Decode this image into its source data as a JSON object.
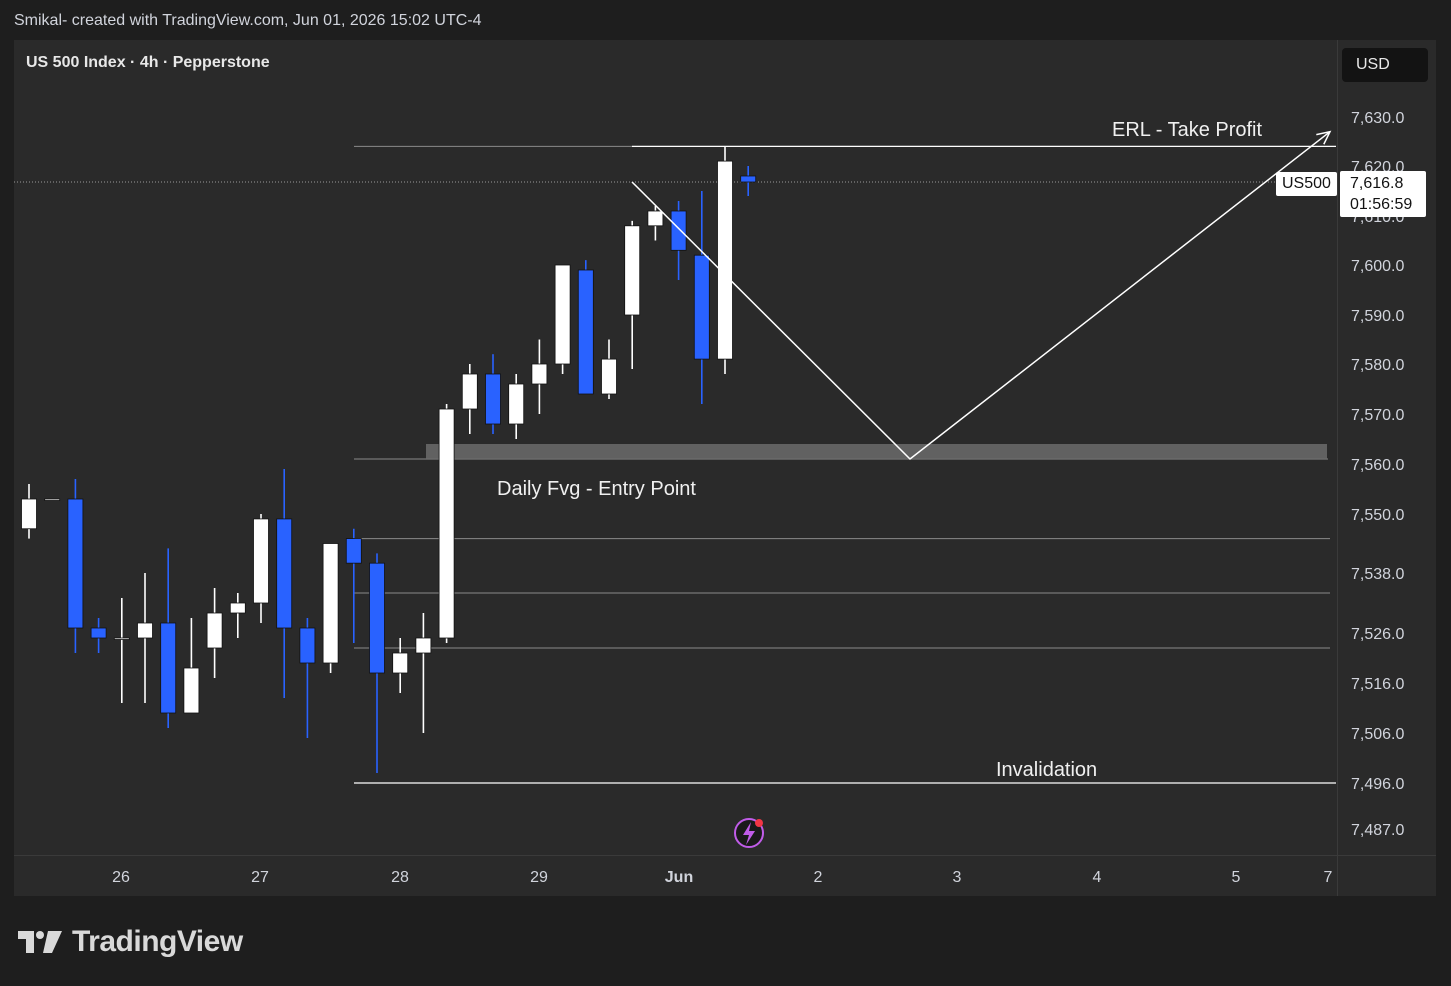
{
  "header": {
    "title": "Smikal- created with TradingView.com, Jun 01, 2026 15:02 UTC-4"
  },
  "legend": {
    "symbol": "US 500 Index · 4h · Pepperstone"
  },
  "currency_button": {
    "label": "USD"
  },
  "price_tag": {
    "symbol": "US500",
    "price": "7,616.8",
    "countdown": "01:56:59"
  },
  "branding": {
    "name": "TradingView"
  },
  "colors": {
    "bull": "#ffffff",
    "bear": "#2962ff",
    "background": "#2a2a2a",
    "fvg_zone": "#6b6b6b"
  },
  "chart_data": {
    "type": "candlestick",
    "title": "US 500 Index · 4h · Pepperstone",
    "y_ticks": [
      "7,630.0",
      "7,620.0",
      "7,610.0",
      "7,600.0",
      "7,590.0",
      "7,580.0",
      "7,570.0",
      "7,560.0",
      "7,550.0",
      "7,538.0",
      "7,526.0",
      "7,516.0",
      "7,506.0",
      "7,496.0",
      "7,487.0"
    ],
    "x_ticks": [
      "26",
      "27",
      "28",
      "29",
      "Jun",
      "2",
      "3",
      "4",
      "5",
      "7"
    ],
    "current_price": 7616.8,
    "candles": [
      {
        "o": 7547,
        "h": 7556,
        "l": 7545,
        "c": 7553
      },
      {
        "o": 7553,
        "h": 7553,
        "l": 7553,
        "c": 7553
      },
      {
        "o": 7553,
        "h": 7557,
        "l": 7522,
        "c": 7527
      },
      {
        "o": 7527,
        "h": 7529,
        "l": 7522,
        "c": 7525
      },
      {
        "o": 7525,
        "h": 7533,
        "l": 7512,
        "c": 7525
      },
      {
        "o": 7525,
        "h": 7538,
        "l": 7512,
        "c": 7528
      },
      {
        "o": 7528,
        "h": 7543,
        "l": 7507,
        "c": 7510
      },
      {
        "o": 7510,
        "h": 7529,
        "l": 7510,
        "c": 7519
      },
      {
        "o": 7523,
        "h": 7535,
        "l": 7517,
        "c": 7530
      },
      {
        "o": 7530,
        "h": 7534,
        "l": 7525,
        "c": 7532
      },
      {
        "o": 7532,
        "h": 7550,
        "l": 7528,
        "c": 7549
      },
      {
        "o": 7549,
        "h": 7559,
        "l": 7513,
        "c": 7527
      },
      {
        "o": 7527,
        "h": 7529,
        "l": 7505,
        "c": 7520
      },
      {
        "o": 7520,
        "h": 7544,
        "l": 7518,
        "c": 7544
      },
      {
        "o": 7545,
        "h": 7547,
        "l": 7524,
        "c": 7540
      },
      {
        "o": 7540,
        "h": 7542,
        "l": 7498,
        "c": 7518
      },
      {
        "o": 7518,
        "h": 7525,
        "l": 7514,
        "c": 7522
      },
      {
        "o": 7522,
        "h": 7530,
        "l": 7506,
        "c": 7525
      },
      {
        "o": 7525,
        "h": 7572,
        "l": 7524,
        "c": 7571
      },
      {
        "o": 7571,
        "h": 7580,
        "l": 7566,
        "c": 7578
      },
      {
        "o": 7578,
        "h": 7582,
        "l": 7566,
        "c": 7568
      },
      {
        "o": 7568,
        "h": 7578,
        "l": 7565,
        "c": 7576
      },
      {
        "o": 7576,
        "h": 7585,
        "l": 7570,
        "c": 7580
      },
      {
        "o": 7580,
        "h": 7600,
        "l": 7578,
        "c": 7600
      },
      {
        "o": 7599,
        "h": 7601,
        "l": 7574,
        "c": 7574
      },
      {
        "o": 7574,
        "h": 7585,
        "l": 7573,
        "c": 7581
      },
      {
        "o": 7590,
        "h": 7609,
        "l": 7579,
        "c": 7608
      },
      {
        "o": 7608,
        "h": 7612,
        "l": 7605,
        "c": 7611
      },
      {
        "o": 7611,
        "h": 7613,
        "l": 7597,
        "c": 7603
      },
      {
        "o": 7602,
        "h": 7615,
        "l": 7572,
        "c": 7581
      },
      {
        "o": 7581,
        "h": 7624,
        "l": 7578,
        "c": 7621
      },
      {
        "o": 7618,
        "h": 7620,
        "l": 7614,
        "c": 7616.8
      }
    ],
    "levels": [
      {
        "price": 7624,
        "label": "ERL - Take Profit"
      },
      {
        "price": 7561,
        "label": "Daily Fvg - Entry Point"
      },
      {
        "price": 7545,
        "label": ""
      },
      {
        "price": 7534,
        "label": ""
      },
      {
        "price": 7523,
        "label": ""
      },
      {
        "price": 7496,
        "label": "Invalidation"
      }
    ],
    "fvg_zone": {
      "top": 7564,
      "bottom": 7561
    },
    "projection_path": [
      {
        "price": 7616.8
      },
      {
        "price": 7561
      },
      {
        "price": 7627
      }
    ]
  }
}
